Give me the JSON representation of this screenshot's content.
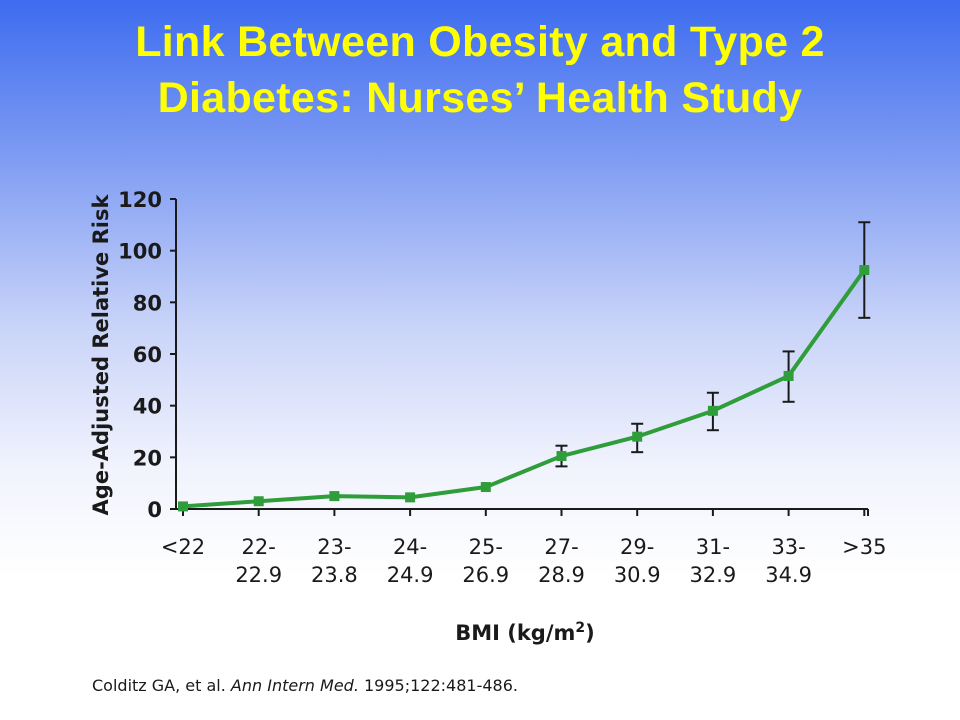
{
  "slide": {
    "title_line1": "Link Between Obesity and Type 2",
    "title_line2": "Diabetes: Nurses’ Health Study"
  },
  "citation": {
    "authors": "Colditz GA, et al.",
    "journal": "Ann Intern Med.",
    "details": "1995;122:481-486."
  },
  "colors": {
    "title": "#ffff00",
    "series_line": "#2e9d3a",
    "axis": "#1a1a1a"
  },
  "chart_data": {
    "type": "line",
    "title": "",
    "xlabel": "BMI (kg/m²)",
    "ylabel": "Age-Adjusted Relative Risk",
    "ylim": [
      0,
      120
    ],
    "yticks": [
      0,
      20,
      40,
      60,
      80,
      100,
      120
    ],
    "categories": [
      [
        "<22"
      ],
      [
        "22-",
        "22.9"
      ],
      [
        "23-",
        "23.8"
      ],
      [
        "24-",
        "24.9"
      ],
      [
        "25-",
        "26.9"
      ],
      [
        "27-",
        "28.9"
      ],
      [
        "29-",
        "30.9"
      ],
      [
        "31-",
        "32.9"
      ],
      [
        "33-",
        "34.9"
      ],
      [
        ">35"
      ]
    ],
    "series": [
      {
        "values": [
          1,
          3,
          5,
          4.5,
          8.5,
          20.5,
          28,
          38,
          51.5,
          92.5
        ],
        "error_low": [
          null,
          null,
          null,
          null,
          null,
          16.5,
          22,
          30.5,
          41.5,
          74
        ],
        "error_high": [
          null,
          null,
          null,
          null,
          null,
          24.5,
          33,
          45,
          61,
          111
        ]
      }
    ],
    "grid": false
  }
}
